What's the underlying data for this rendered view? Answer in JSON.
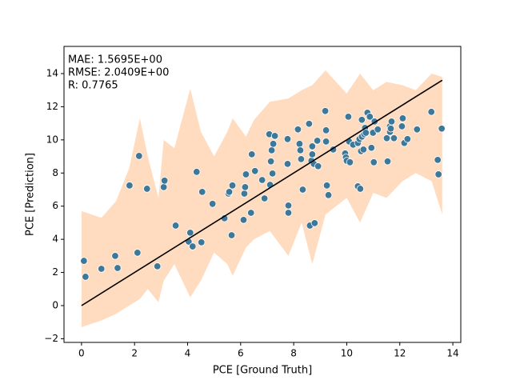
{
  "chart_data": {
    "type": "scatter",
    "xlabel": "PCE [Ground Truth]",
    "ylabel": "PCE [Prediction]",
    "annotations": [
      "MAE:  1.5695E+00",
      "RMSE: 2.0409E+00",
      "R:  0.7765"
    ],
    "xlim": [
      -0.66,
      14.3
    ],
    "ylim": [
      -2.22,
      15.64
    ],
    "xticks": [
      0,
      2,
      4,
      6,
      8,
      10,
      12,
      14
    ],
    "yticks": [
      {
        "value": -2,
        "label": "−2"
      },
      0,
      2,
      4,
      6,
      8,
      10,
      12,
      14
    ],
    "points": {
      "color": "#3e7898",
      "x": [
        0.09,
        0.15,
        0.75,
        1.27,
        1.36,
        1.81,
        2.11,
        2.17,
        2.47,
        2.86,
        3.1,
        3.13,
        3.55,
        4.04,
        4.1,
        4.19,
        4.34,
        4.52,
        4.55,
        4.94,
        5.39,
        5.54,
        5.57,
        5.66,
        5.69,
        6.11,
        6.14,
        6.17,
        6.2,
        6.39,
        6.42,
        6.54,
        6.81,
        6.9,
        7.08,
        7.11,
        7.14,
        7.17,
        7.2,
        7.23,
        7.29,
        7.77,
        7.77,
        7.8,
        7.8,
        8.16,
        8.22,
        8.25,
        8.28,
        8.34,
        8.58,
        8.61,
        8.67,
        8.7,
        8.7,
        8.76,
        8.79,
        8.89,
        8.92,
        9.19,
        9.22,
        9.22,
        9.25,
        9.31,
        9.49,
        9.94,
        9.97,
        10.0,
        10.06,
        10.09,
        10.12,
        10.24,
        10.42,
        10.42,
        10.48,
        10.51,
        10.54,
        10.57,
        10.57,
        10.63,
        10.66,
        10.69,
        10.72,
        10.78,
        10.87,
        10.93,
        10.99,
        11.02,
        11.05,
        11.17,
        11.51,
        11.54,
        11.63,
        11.63,
        11.66,
        11.69,
        11.78,
        12.08,
        12.11,
        12.17,
        12.29,
        12.65,
        13.19,
        13.43,
        13.46,
        13.58
      ],
      "y": [
        2.7,
        1.74,
        2.22,
        3.0,
        2.27,
        7.25,
        3.19,
        9.03,
        7.05,
        2.37,
        7.15,
        7.54,
        4.83,
        3.86,
        4.4,
        3.57,
        8.07,
        3.82,
        6.86,
        6.14,
        5.27,
        6.76,
        6.86,
        4.25,
        7.25,
        5.17,
        6.76,
        7.15,
        7.92,
        5.6,
        9.13,
        8.12,
        7.58,
        6.47,
        10.34,
        7.29,
        8.7,
        9.37,
        7.97,
        9.76,
        10.24,
        8.55,
        10.05,
        6.04,
        5.6,
        10.63,
        9.76,
        9.37,
        8.84,
        7.0,
        10.97,
        4.83,
        8.74,
        9.13,
        9.61,
        8.55,
        4.98,
        9.95,
        8.41,
        11.74,
        10.58,
        9.9,
        7.25,
        6.67,
        9.42,
        9.18,
        8.94,
        8.74,
        11.4,
        9.9,
        8.65,
        9.71,
        9.81,
        7.2,
        10.05,
        7.05,
        9.32,
        11.21,
        10.19,
        9.42,
        10.34,
        10.72,
        10.43,
        11.64,
        11.4,
        9.52,
        10.43,
        8.65,
        11.11,
        10.63,
        10.1,
        8.7,
        10.48,
        10.82,
        10.68,
        11.11,
        10.1,
        10.82,
        11.3,
        9.81,
        10.05,
        10.63,
        11.69,
        8.79,
        7.92,
        10.68
      ]
    },
    "line": {
      "color": "#000000",
      "x": [
        0,
        13.6
      ],
      "y": [
        0,
        13.6
      ]
    },
    "band": {
      "color": "#ffdcc0",
      "x": [
        0.0,
        0.75,
        1.3,
        1.8,
        2.2,
        2.5,
        2.9,
        3.1,
        3.5,
        4.1,
        4.5,
        5.0,
        5.5,
        5.7,
        6.2,
        6.5,
        7.1,
        7.8,
        8.3,
        8.7,
        9.2,
        10.0,
        10.5,
        11.0,
        11.5,
        12.1,
        12.6,
        13.2,
        13.6
      ],
      "upper": [
        5.7,
        5.3,
        6.3,
        8.3,
        11.3,
        9.0,
        6.5,
        10.0,
        9.5,
        13.1,
        10.5,
        9.0,
        10.5,
        11.3,
        10.2,
        11.2,
        12.3,
        12.5,
        13.0,
        13.3,
        14.2,
        12.8,
        14.0,
        13.0,
        13.5,
        13.3,
        13.0,
        14.0,
        13.8
      ],
      "lower": [
        -1.3,
        -0.9,
        -0.5,
        0.0,
        0.4,
        1.0,
        0.2,
        1.5,
        2.5,
        0.5,
        1.5,
        3.2,
        2.5,
        1.8,
        3.5,
        4.0,
        4.5,
        3.0,
        5.0,
        2.5,
        5.5,
        6.5,
        5.0,
        6.8,
        6.5,
        7.5,
        8.0,
        7.5,
        5.5
      ]
    }
  }
}
